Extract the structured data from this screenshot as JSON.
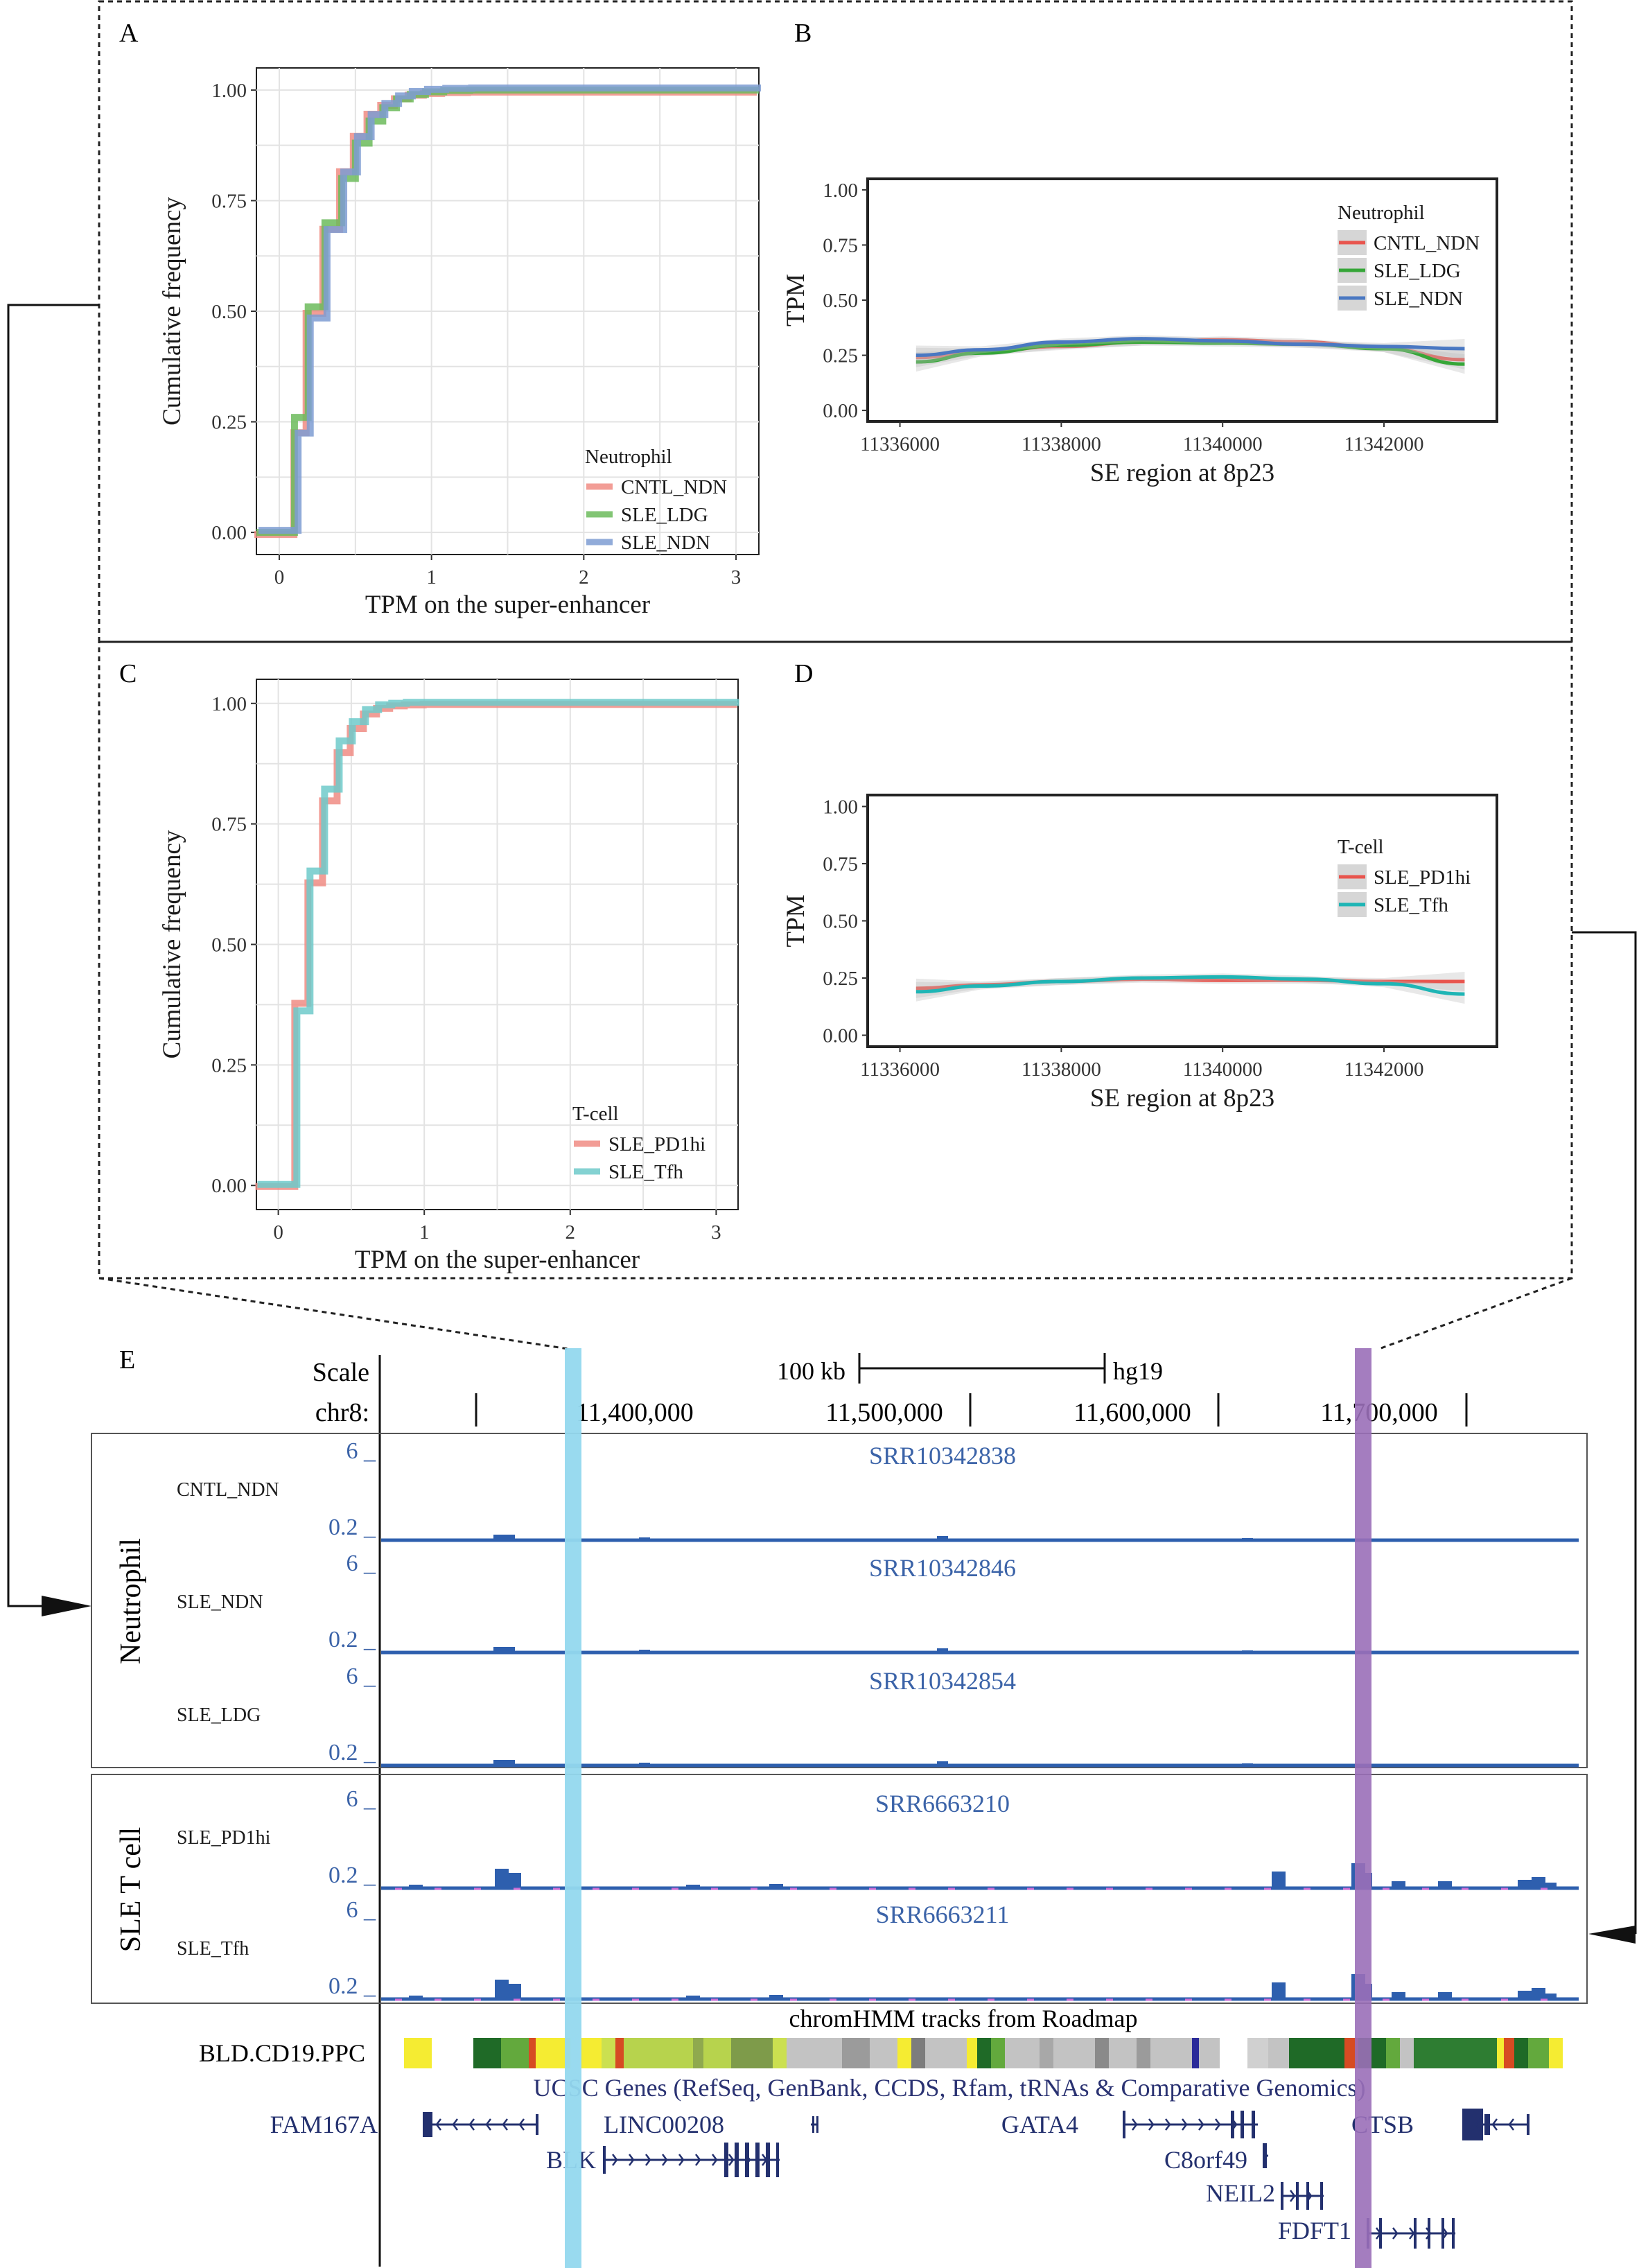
{
  "panel_letters": [
    "A",
    "B",
    "C",
    "D",
    "E"
  ],
  "colors": {
    "cntl_ndn": "#F08C84",
    "sle_ldg": "#6CBB5C",
    "sle_ndn": "#7E9CD2",
    "sle_pd1hi": "#F08C84",
    "sle_tfh": "#6FCACA",
    "smooth_red": "#E8554E",
    "smooth_green": "#36A638",
    "smooth_blue": "#4A78C2",
    "smooth_teal": "#1FB5B5",
    "track_blue": "#2E5FAE",
    "highlight_cyan": "#93D8EE",
    "highlight_purple": "#9A6FB8",
    "gene_navy": "#23306E"
  },
  "chart_data": [
    {
      "panel": "A",
      "type": "line",
      "step": true,
      "xlabel": "TPM on the super-enhancer",
      "ylabel": "Cumulative frequency",
      "xticks": [
        "0",
        "1",
        "2",
        "3"
      ],
      "yticks": [
        "0.00",
        "0.25",
        "0.50",
        "0.75",
        "1.00"
      ],
      "xlim": [
        -0.15,
        3.15
      ],
      "ylim": [
        -0.05,
        1.05
      ],
      "grid": true,
      "legend_title": "Neutrophil",
      "legend_position": "bottom-right",
      "series": [
        {
          "name": "CNTL_NDN",
          "color_key": "cntl_ndn",
          "x": [
            -0.15,
            0.11,
            0.19,
            0.3,
            0.41,
            0.5,
            0.59,
            0.68,
            0.77,
            0.86,
            0.96,
            1.08,
            1.25,
            1.5,
            3.15
          ],
          "y": [
            0.0,
            0.23,
            0.5,
            0.69,
            0.82,
            0.9,
            0.95,
            0.97,
            0.985,
            0.993,
            0.997,
            0.999,
            1.0,
            1.0,
            1.0
          ]
        },
        {
          "name": "SLE_LDG",
          "color_key": "sle_ldg",
          "x": [
            -0.15,
            0.1,
            0.19,
            0.3,
            0.41,
            0.5,
            0.59,
            0.68,
            0.77,
            0.86,
            0.96,
            1.08,
            1.25,
            1.5,
            3.15
          ],
          "y": [
            0.0,
            0.26,
            0.51,
            0.7,
            0.8,
            0.88,
            0.93,
            0.96,
            0.98,
            0.99,
            0.996,
            0.999,
            1.0,
            1.0,
            1.0
          ]
        },
        {
          "name": "SLE_NDN",
          "color_key": "sle_ndn",
          "x": [
            -0.15,
            0.11,
            0.19,
            0.3,
            0.41,
            0.5,
            0.59,
            0.68,
            0.77,
            0.86,
            0.96,
            1.08,
            1.25,
            1.5,
            3.15
          ],
          "y": [
            0.0,
            0.22,
            0.48,
            0.68,
            0.81,
            0.89,
            0.94,
            0.965,
            0.982,
            0.992,
            0.997,
            0.999,
            1.0,
            1.0,
            1.0
          ]
        }
      ]
    },
    {
      "panel": "B",
      "type": "line",
      "smooth": true,
      "xlabel": "SE region at 8p23",
      "ylabel": "TPM",
      "xticks": [
        "11336000",
        "11338000",
        "11340000",
        "11342000"
      ],
      "yticks": [
        "0.00",
        "0.25",
        "0.50",
        "0.75",
        "1.00"
      ],
      "xlim": [
        11335600,
        11343400
      ],
      "ylim": [
        -0.05,
        1.05
      ],
      "grid": false,
      "legend_title": "Neutrophil",
      "legend_position": "top-right",
      "series": [
        {
          "name": "CNTL_NDN",
          "color_key": "smooth_red",
          "x": [
            11336200,
            11337000,
            11338000,
            11339000,
            11340000,
            11341000,
            11342000,
            11343000
          ],
          "y": [
            0.24,
            0.265,
            0.29,
            0.31,
            0.32,
            0.31,
            0.28,
            0.23
          ]
        },
        {
          "name": "SLE_LDG",
          "color_key": "smooth_green",
          "x": [
            11336200,
            11337000,
            11338000,
            11339000,
            11340000,
            11341000,
            11342000,
            11343000
          ],
          "y": [
            0.22,
            0.26,
            0.295,
            0.31,
            0.305,
            0.3,
            0.28,
            0.21
          ]
        },
        {
          "name": "SLE_NDN",
          "color_key": "smooth_blue",
          "x": [
            11336200,
            11337000,
            11338000,
            11339000,
            11340000,
            11341000,
            11342000,
            11343000
          ],
          "y": [
            0.25,
            0.275,
            0.31,
            0.325,
            0.315,
            0.3,
            0.29,
            0.28
          ]
        }
      ]
    },
    {
      "panel": "C",
      "type": "line",
      "step": true,
      "xlabel": "TPM on the super-enhancer",
      "ylabel": "Cumulative frequency",
      "xticks": [
        "0",
        "1",
        "2",
        "3"
      ],
      "yticks": [
        "0.00",
        "0.25",
        "0.50",
        "0.75",
        "1.00"
      ],
      "xlim": [
        -0.15,
        3.15
      ],
      "ylim": [
        -0.05,
        1.05
      ],
      "grid": true,
      "legend_title": "T-cell",
      "legend_position": "bottom-right",
      "series": [
        {
          "name": "SLE_PD1hi",
          "color_key": "sle_pd1hi",
          "x": [
            -0.15,
            0.12,
            0.21,
            0.31,
            0.41,
            0.5,
            0.59,
            0.68,
            0.77,
            0.87,
            1.0,
            3.15
          ],
          "y": [
            0.0,
            0.38,
            0.63,
            0.8,
            0.9,
            0.95,
            0.98,
            0.992,
            0.997,
            0.999,
            1.0,
            1.0
          ]
        },
        {
          "name": "SLE_Tfh",
          "color_key": "sle_tfh",
          "x": [
            -0.15,
            0.12,
            0.21,
            0.31,
            0.41,
            0.5,
            0.59,
            0.68,
            0.77,
            0.87,
            1.0,
            3.15
          ],
          "y": [
            0.0,
            0.36,
            0.65,
            0.82,
            0.92,
            0.96,
            0.985,
            0.995,
            0.998,
            1.0,
            1.0,
            1.0
          ]
        }
      ]
    },
    {
      "panel": "D",
      "type": "line",
      "smooth": true,
      "xlabel": "SE region at 8p23",
      "ylabel": "TPM",
      "xticks": [
        "11336000",
        "11338000",
        "11340000",
        "11342000"
      ],
      "yticks": [
        "0.00",
        "0.25",
        "0.50",
        "0.75",
        "1.00"
      ],
      "xlim": [
        11335600,
        11343400
      ],
      "ylim": [
        -0.05,
        1.05
      ],
      "grid": false,
      "legend_title": "T-cell",
      "legend_position": "top-right",
      "series": [
        {
          "name": "SLE_PD1hi",
          "color_key": "smooth_red",
          "x": [
            11336200,
            11337000,
            11338000,
            11339000,
            11340000,
            11341000,
            11342000,
            11343000
          ],
          "y": [
            0.205,
            0.22,
            0.235,
            0.245,
            0.24,
            0.24,
            0.235,
            0.235
          ]
        },
        {
          "name": "SLE_Tfh",
          "color_key": "smooth_teal",
          "x": [
            11336200,
            11337000,
            11338000,
            11339000,
            11340000,
            11341000,
            11342000,
            11343000
          ],
          "y": [
            0.19,
            0.215,
            0.235,
            0.25,
            0.255,
            0.245,
            0.225,
            0.18
          ]
        }
      ]
    }
  ],
  "browser": {
    "scale_label": "Scale",
    "scale_bar_text": "100 kb",
    "assembly": "hg19",
    "chrom_label": "chr8:",
    "coords": [
      "11,400,000",
      "11,500,000",
      "11,600,000",
      "11,700,000"
    ],
    "neutrophil_group": "Neutrophil",
    "tcell_group": "SLE T cell",
    "tracks": [
      {
        "label": "CNTL_NDN",
        "accession": "SRR10342838",
        "max": "6 _",
        "min": "0.2 _",
        "group": "neutrophil"
      },
      {
        "label": "SLE_NDN",
        "accession": "SRR10342846",
        "max": "6 _",
        "min": "0.2 _",
        "group": "neutrophil"
      },
      {
        "label": "SLE_LDG",
        "accession": "SRR10342854",
        "max": "6 _",
        "min": "0.2 _",
        "group": "neutrophil"
      },
      {
        "label": "SLE_PD1hi",
        "accession": "SRR6663210",
        "max": "6 _",
        "min": "0.2 _",
        "group": "tcell"
      },
      {
        "label": "SLE_Tfh",
        "accession": "SRR6663211",
        "max": "6 _",
        "min": "0.2 _",
        "group": "tcell"
      }
    ],
    "chromhmm_title": "chromHMM tracks from Roadmap",
    "chromhmm_label": "BLD.CD19.PPC",
    "genes_title": "UCSC Genes (RefSeq, GenBank, CCDS, Rfam, tRNAs & Comparative Genomics)",
    "genes": [
      "FAM167A",
      "LINC00208",
      "GATA4",
      "CTSB",
      "BLK",
      "C8orf49",
      "NEIL2",
      "FDFT1"
    ]
  }
}
